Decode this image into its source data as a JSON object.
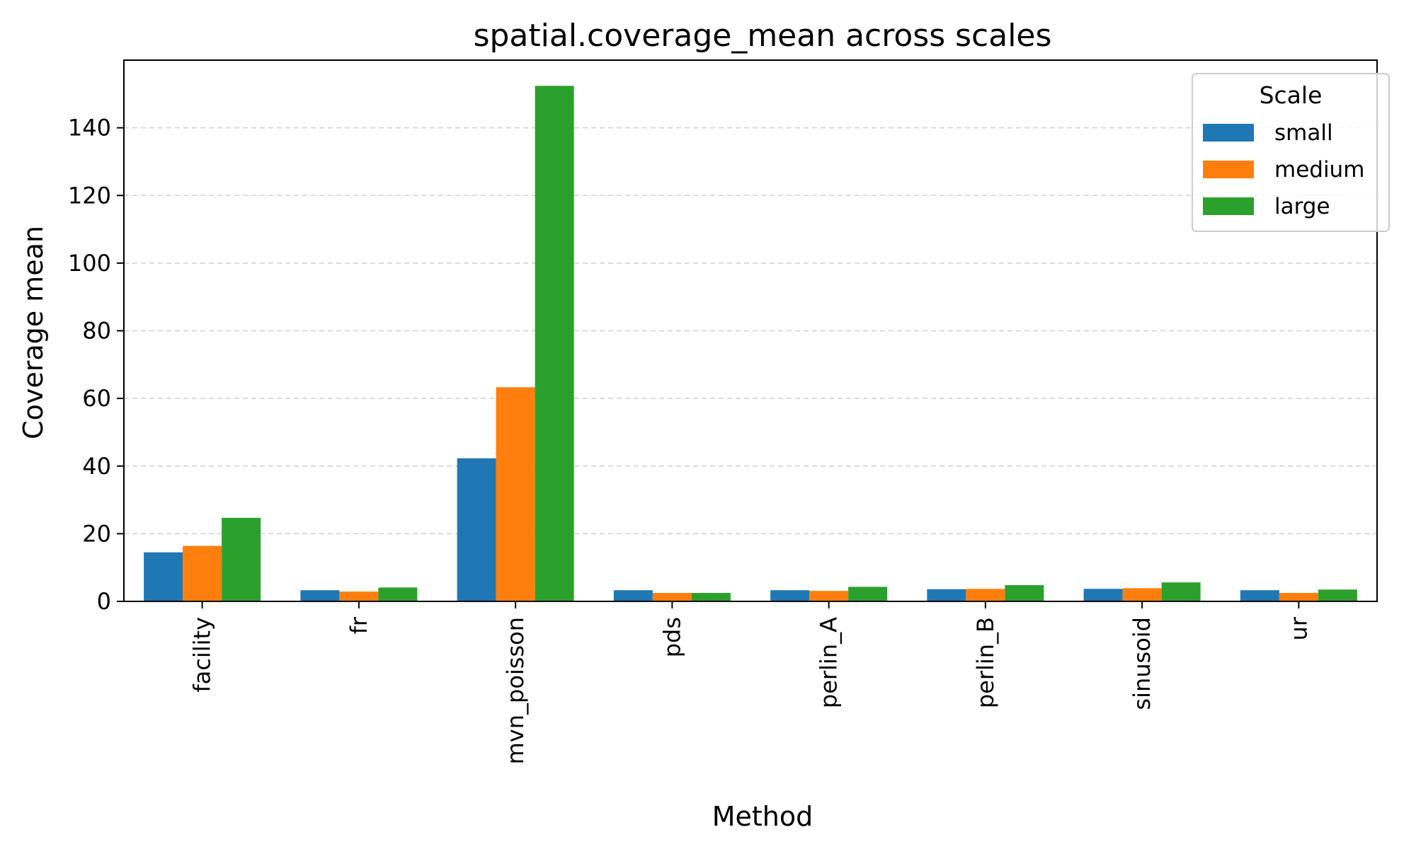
{
  "chart_data": {
    "type": "bar",
    "title": "spatial.coverage_mean across scales",
    "xlabel": "Method",
    "ylabel": "Coverage mean",
    "categories": [
      "facility",
      "fr",
      "mvn_poisson",
      "pds",
      "perlin_A",
      "perlin_B",
      "sinusoid",
      "ur"
    ],
    "series": [
      {
        "name": "small",
        "color": "#1f77b4",
        "values": [
          14.5,
          3.3,
          42.3,
          3.3,
          3.3,
          3.6,
          3.7,
          3.3
        ]
      },
      {
        "name": "medium",
        "color": "#ff7f0e",
        "values": [
          16.4,
          2.9,
          63.3,
          2.5,
          3.1,
          3.7,
          3.9,
          2.5
        ]
      },
      {
        "name": "large",
        "color": "#2ca02c",
        "values": [
          24.7,
          4.1,
          152.4,
          2.5,
          4.3,
          4.8,
          5.6,
          3.5
        ]
      }
    ],
    "ylim": [
      0,
      160
    ],
    "yticks": [
      0,
      20,
      40,
      60,
      80,
      100,
      120,
      140
    ],
    "grid": "y-dashed",
    "legend": {
      "title": "Scale",
      "placement": "top-right"
    }
  }
}
